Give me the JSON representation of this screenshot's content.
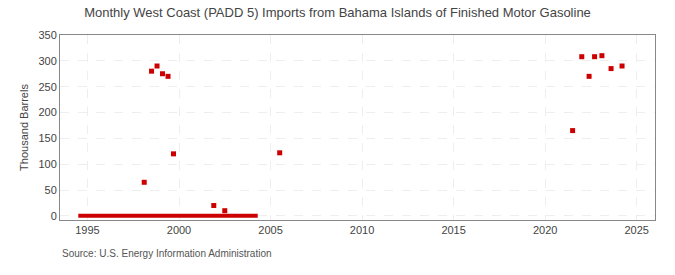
{
  "chart_data": {
    "type": "scatter",
    "title": "Monthly West Coast (PADD 5) Imports from Bahama Islands of Finished Motor Gasoline",
    "ylabel": "Thousand Barrels",
    "annotations": [
      "Source: U.S. Energy Information Administration"
    ],
    "xlim": [
      1993.5,
      2026
    ],
    "ylim": [
      -8,
      350
    ],
    "xticks": [
      1995,
      2000,
      2005,
      2010,
      2015,
      2020,
      2025
    ],
    "yticks": [
      0,
      50,
      100,
      150,
      200,
      250,
      300,
      350
    ],
    "grid": true,
    "series": [
      {
        "type": "scatter",
        "marker": "square",
        "color": "#cc0000",
        "x": [
          1998.1,
          1998.5,
          1998.8,
          1999.1,
          1999.4,
          1999.7,
          2001.9,
          2002.5,
          2005.5,
          2021.5,
          2022.0,
          2022.4,
          2022.7,
          2023.1,
          2023.6,
          2024.2
        ],
        "values": [
          65,
          280,
          290,
          275,
          270,
          120,
          20,
          10,
          122,
          165,
          308,
          270,
          308,
          310,
          285,
          290
        ]
      },
      {
        "type": "line",
        "line_style": "solid",
        "color": "#cc0000",
        "x": [
          1994.5,
          2004.3
        ],
        "values": [
          0,
          0
        ]
      }
    ]
  }
}
